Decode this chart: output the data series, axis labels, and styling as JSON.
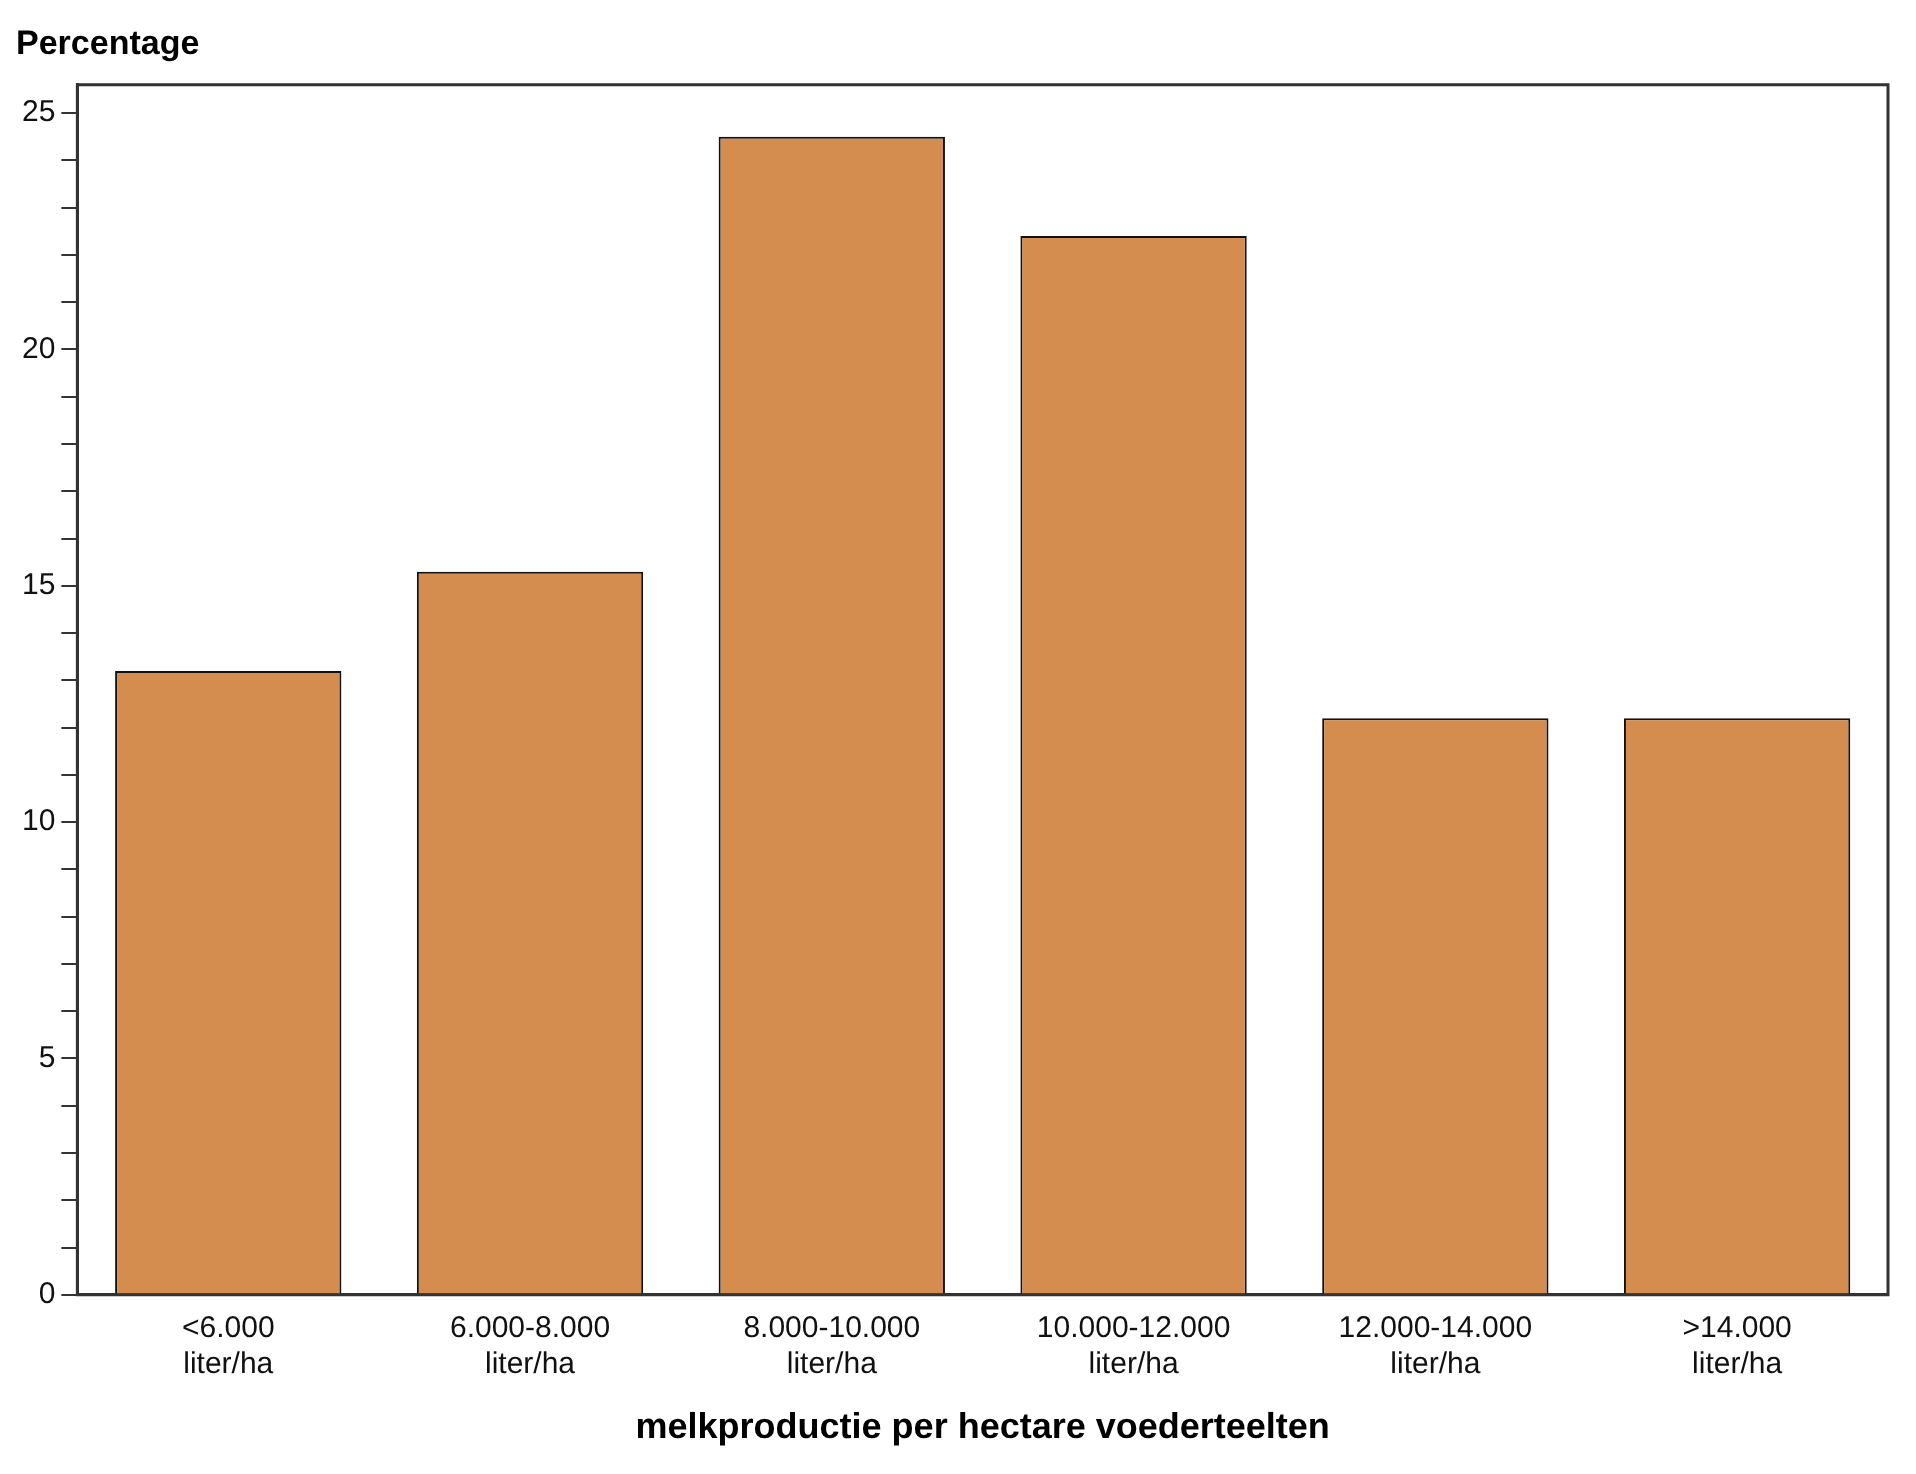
{
  "chart_data": {
    "type": "bar",
    "ylabel": "Percentage",
    "xlabel": "melkproductie per hectare voederteelten",
    "categories": [
      "<6.000 liter/ha",
      "6.000-8.000 liter/ha",
      "8.000-10.000 liter/ha",
      "10.000-12.000 liter/ha",
      "12.000-14.000 liter/ha",
      ">14.000 liter/ha"
    ],
    "values": [
      13.2,
      15.3,
      24.5,
      22.4,
      12.2,
      12.2
    ],
    "color": "#d48d4e",
    "ylim": [
      0,
      25.6
    ],
    "yticks": [
      0,
      {
        "value": 1,
        "label": null
      },
      {
        "value": 2,
        "label": null
      },
      {
        "value": 3,
        "label": null
      },
      {
        "value": 4,
        "label": null
      },
      5,
      {
        "value": 6,
        "label": null
      },
      {
        "value": 7,
        "label": null
      },
      {
        "value": 8,
        "label": null
      },
      {
        "value": 9,
        "label": null
      },
      10,
      {
        "value": 11,
        "label": null
      },
      {
        "value": 12,
        "label": null
      },
      {
        "value": 13,
        "label": null
      },
      {
        "value": 14,
        "label": null
      },
      15,
      {
        "value": 16,
        "label": null
      },
      {
        "value": 17,
        "label": null
      },
      {
        "value": 18,
        "label": null
      },
      {
        "value": 19,
        "label": null
      },
      20,
      {
        "value": 21,
        "label": null
      },
      {
        "value": 22,
        "label": null
      },
      {
        "value": 23,
        "label": null
      },
      {
        "value": 24,
        "label": null
      },
      25
    ],
    "grid": false,
    "legend": false
  }
}
